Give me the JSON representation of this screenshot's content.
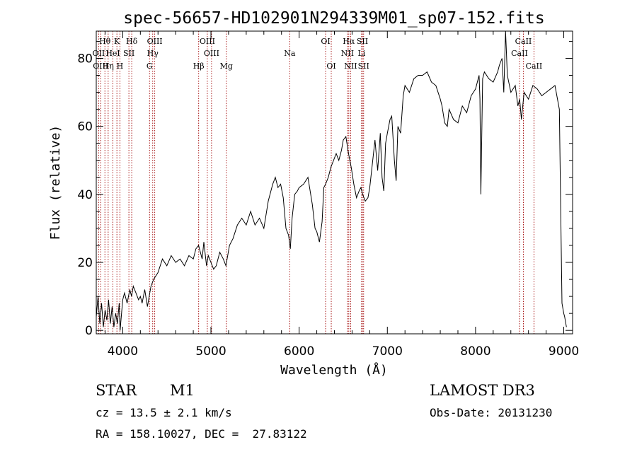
{
  "chart_data": {
    "type": "line",
    "title": "spec-56657-HD102901N294339M01_sp07-152.fits",
    "xlabel": "Wavelength (Å)",
    "ylabel": "Flux (relative)",
    "xlim": [
      3700,
      9100
    ],
    "ylim": [
      -1,
      88
    ],
    "xticks": [
      4000,
      5000,
      6000,
      7000,
      8000,
      9000
    ],
    "yticks": [
      0,
      20,
      40,
      60,
      80
    ],
    "grid": false,
    "series": [
      {
        "name": "flux",
        "x": [
          3700,
          3720,
          3740,
          3760,
          3780,
          3800,
          3820,
          3840,
          3860,
          3880,
          3900,
          3920,
          3940,
          3960,
          3970,
          3980,
          4000,
          4020,
          4050,
          4080,
          4100,
          4120,
          4150,
          4180,
          4200,
          4220,
          4250,
          4280,
          4300,
          4320,
          4350,
          4400,
          4450,
          4500,
          4550,
          4600,
          4650,
          4700,
          4750,
          4800,
          4830,
          4860,
          4880,
          4900,
          4920,
          4950,
          4970,
          5000,
          5030,
          5060,
          5100,
          5140,
          5170,
          5190,
          5210,
          5250,
          5300,
          5350,
          5400,
          5450,
          5500,
          5550,
          5600,
          5650,
          5700,
          5730,
          5760,
          5790,
          5820,
          5850,
          5880,
          5900,
          5920,
          5950,
          5980,
          6000,
          6050,
          6100,
          6150,
          6180,
          6200,
          6230,
          6260,
          6280,
          6300,
          6330,
          6360,
          6390,
          6420,
          6450,
          6480,
          6500,
          6530,
          6560,
          6590,
          6620,
          6650,
          6680,
          6700,
          6720,
          6750,
          6780,
          6800,
          6830,
          6860,
          6890,
          6920,
          6940,
          6960,
          6980,
          7000,
          7030,
          7050,
          7080,
          7100,
          7120,
          7150,
          7180,
          7200,
          7250,
          7300,
          7350,
          7400,
          7450,
          7500,
          7550,
          7600,
          7620,
          7650,
          7680,
          7700,
          7750,
          7800,
          7850,
          7900,
          7950,
          8000,
          8020,
          8040,
          8050,
          8060,
          8080,
          8100,
          8150,
          8200,
          8250,
          8270,
          8300,
          8320,
          8340,
          8360,
          8400,
          8450,
          8480,
          8500,
          8520,
          8550,
          8600,
          8650,
          8700,
          8750,
          8800,
          8850,
          8900,
          8950,
          8980,
          9000,
          9010,
          9030
        ],
        "y": [
          4,
          10,
          2,
          8,
          1,
          6,
          3,
          9,
          2,
          7,
          1,
          5,
          2,
          8,
          0,
          3,
          9,
          11,
          8,
          12,
          10,
          13,
          11,
          9,
          10,
          8,
          12,
          7,
          10,
          13,
          15,
          17,
          21,
          19,
          22,
          20,
          21,
          19,
          22,
          21,
          24,
          25,
          23,
          21,
          26,
          19,
          22,
          20,
          18,
          19,
          23,
          21,
          19,
          22,
          25,
          27,
          31,
          33,
          31,
          35,
          31,
          33,
          30,
          38,
          43,
          45,
          42,
          43,
          39,
          30,
          28,
          24,
          33,
          40,
          41,
          42,
          43,
          45,
          37,
          30,
          29,
          26,
          32,
          42,
          43,
          45,
          48,
          50,
          52,
          50,
          53,
          56,
          57,
          52,
          48,
          43,
          39,
          41,
          42,
          40,
          38,
          39,
          42,
          49,
          56,
          47,
          58,
          45,
          41,
          55,
          58,
          62,
          63,
          50,
          44,
          60,
          58,
          69,
          72,
          70,
          74,
          75,
          75,
          76,
          73,
          72,
          68,
          66,
          61,
          60,
          65,
          62,
          61,
          66,
          64,
          69,
          71,
          73,
          75,
          68,
          40,
          74,
          76,
          74,
          73,
          76,
          78,
          80,
          70,
          88,
          75,
          70,
          72,
          66,
          68,
          62,
          70,
          68,
          72,
          71,
          69,
          70,
          71,
          72,
          65,
          8,
          5,
          4,
          1
        ]
      }
    ],
    "lines": [
      {
        "label": "Hθ",
        "row": 1,
        "x": 3798
      },
      {
        "label": "K",
        "row": 1,
        "x": 3934
      },
      {
        "label": "Hδ",
        "row": 1,
        "x": 4102
      },
      {
        "label": "OIII",
        "row": 1,
        "x": 4363
      },
      {
        "label": "OIII",
        "row": 1,
        "x": 4959
      },
      {
        "label": "OI",
        "row": 1,
        "x": 6300
      },
      {
        "label": "Hα",
        "row": 1,
        "x": 6563
      },
      {
        "label": "SII",
        "row": 1,
        "x": 6717
      },
      {
        "label": "CaII",
        "row": 1,
        "x": 8542
      },
      {
        "label": "OII",
        "row": 2,
        "x": 3727
      },
      {
        "label": "HeI",
        "row": 2,
        "x": 3889
      },
      {
        "label": "SII",
        "row": 2,
        "x": 4070
      },
      {
        "label": "Hγ",
        "row": 2,
        "x": 4340
      },
      {
        "label": "OIII",
        "row": 2,
        "x": 5007
      },
      {
        "label": "Na",
        "row": 2,
        "x": 5893
      },
      {
        "label": "NII",
        "row": 2,
        "x": 6548
      },
      {
        "label": "Li",
        "row": 2,
        "x": 6708
      },
      {
        "label": "CaII",
        "row": 2,
        "x": 8498
      },
      {
        "label": "OIII",
        "row": 3,
        "x": 3750
      },
      {
        "label": "Hη",
        "row": 3,
        "x": 3835
      },
      {
        "label": "H",
        "row": 3,
        "x": 3968
      },
      {
        "label": "G",
        "row": 3,
        "x": 4304
      },
      {
        "label": "Hβ",
        "row": 3,
        "x": 4861
      },
      {
        "label": "Mg",
        "row": 3,
        "x": 5175
      },
      {
        "label": "OI",
        "row": 3,
        "x": 6364
      },
      {
        "label": "NII",
        "row": 3,
        "x": 6584
      },
      {
        "label": "SII",
        "row": 3,
        "x": 6731
      },
      {
        "label": "CaII",
        "row": 3,
        "x": 8662
      }
    ],
    "line_color": "#a00000"
  },
  "info": {
    "object_class": "STAR",
    "subclass": "M1",
    "survey": "LAMOST DR3",
    "redshift": "cz = 13.5 ± 2.1 km/s",
    "obs_date": "Obs-Date: 20131230",
    "coords": "RA = 158.10027, DEC =  27.83122"
  }
}
